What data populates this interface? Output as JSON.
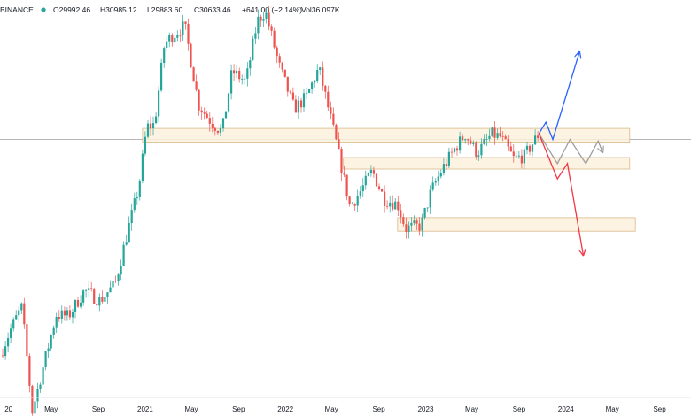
{
  "header": {
    "exchange": "BINANCE",
    "open": "O29992.46",
    "high": "H30985.12",
    "low": "L29883.60",
    "close": "C30633.46",
    "change": "+641.00 (+2.14%)",
    "volume": "Vol36.097K",
    "status_color": "#26a69a"
  },
  "chart_data": {
    "type": "candlestick",
    "title": "",
    "xlabel": "",
    "ylabel": "",
    "x_ticks": [
      "20",
      "May",
      "Sep",
      "2021",
      "May",
      "Sep",
      "2022",
      "May",
      "Sep",
      "2023",
      "May",
      "Sep",
      "2024",
      "May",
      "Sep"
    ],
    "x_range": [
      "2019-12-20",
      "2024-10-25"
    ],
    "y_range": [
      3000,
      70000
    ],
    "log_scale": true,
    "grid": false,
    "colors": {
      "up": "#26a69a",
      "down": "#ef5350",
      "zone_fill": "#fdf1dd",
      "zone_edge": "#d9b98a",
      "bull_path": "#2962ff",
      "bear_path": "#f23645",
      "range_path": "#9e9e9e",
      "price_line": "#9e9e9e"
    },
    "weekly_close_path": [
      [
        "2019-12-20",
        7200
      ],
      [
        "2020-01-20",
        8700
      ],
      [
        "2020-02-15",
        9900
      ],
      [
        "2020-03-13",
        5000
      ],
      [
        "2020-04-15",
        7000
      ],
      [
        "2020-05-15",
        9400
      ],
      [
        "2020-06-15",
        9300
      ],
      [
        "2020-07-27",
        11000
      ],
      [
        "2020-09-05",
        10300
      ],
      [
        "2020-10-15",
        11500
      ],
      [
        "2020-11-15",
        16000
      ],
      [
        "2020-12-15",
        21500
      ],
      [
        "2021-01-05",
        32000
      ],
      [
        "2021-01-25",
        32500
      ],
      [
        "2021-02-20",
        55000
      ],
      [
        "2021-03-12",
        58000
      ],
      [
        "2021-04-14",
        62000
      ],
      [
        "2021-05-20",
        37000
      ],
      [
        "2021-06-22",
        33000
      ],
      [
        "2021-07-20",
        31000
      ],
      [
        "2021-08-15",
        46000
      ],
      [
        "2021-09-20",
        43000
      ],
      [
        "2021-10-20",
        64000
      ],
      [
        "2021-11-10",
        68000
      ],
      [
        "2021-12-15",
        48000
      ],
      [
        "2022-01-24",
        36000
      ],
      [
        "2022-02-25",
        39000
      ],
      [
        "2022-03-29",
        47000
      ],
      [
        "2022-05-10",
        30000
      ],
      [
        "2022-06-18",
        19000
      ],
      [
        "2022-07-15",
        21000
      ],
      [
        "2022-08-15",
        24000
      ],
      [
        "2022-09-15",
        20000
      ],
      [
        "2022-10-20",
        19300
      ],
      [
        "2022-11-10",
        16500
      ],
      [
        "2022-12-20",
        16800
      ],
      [
        "2023-01-15",
        21000
      ],
      [
        "2023-02-15",
        24500
      ],
      [
        "2023-03-20",
        28000
      ],
      [
        "2023-04-14",
        30500
      ],
      [
        "2023-05-15",
        27000
      ],
      [
        "2023-06-22",
        30500
      ],
      [
        "2023-07-15",
        30000
      ],
      [
        "2023-08-18",
        26000
      ],
      [
        "2023-09-15",
        26500
      ],
      [
        "2023-10-23",
        30633
      ]
    ],
    "zones": [
      {
        "name": "upper-zone",
        "from": "2020-12-25",
        "to": "2024-06-15",
        "low": 29000,
        "high": 31700
      },
      {
        "name": "middle-zone",
        "from": "2022-06-01",
        "to": "2024-06-15",
        "low": 24300,
        "high": 26200
      },
      {
        "name": "lower-zone",
        "from": "2022-10-20",
        "to": "2024-06-30",
        "low": 16200,
        "high": 17700
      }
    ],
    "projections": [
      {
        "name": "bullish-path",
        "points": [
          [
            "2023-10-23",
            30633
          ],
          [
            "2023-11-10",
            33000
          ],
          [
            "2023-11-28",
            29500
          ],
          [
            "2024-02-05",
            52000
          ]
        ]
      },
      {
        "name": "range-path",
        "points": [
          [
            "2023-10-23",
            30633
          ],
          [
            "2023-12-10",
            25200
          ],
          [
            "2024-01-12",
            29500
          ],
          [
            "2024-02-22",
            25200
          ],
          [
            "2024-03-25",
            29200
          ],
          [
            "2024-04-05",
            27200
          ]
        ]
      },
      {
        "name": "bearish-path",
        "points": [
          [
            "2023-10-23",
            30633
          ],
          [
            "2023-12-10",
            22800
          ],
          [
            "2024-01-05",
            25200
          ],
          [
            "2024-02-15",
            13900
          ]
        ]
      }
    ],
    "price_line": 29500
  }
}
